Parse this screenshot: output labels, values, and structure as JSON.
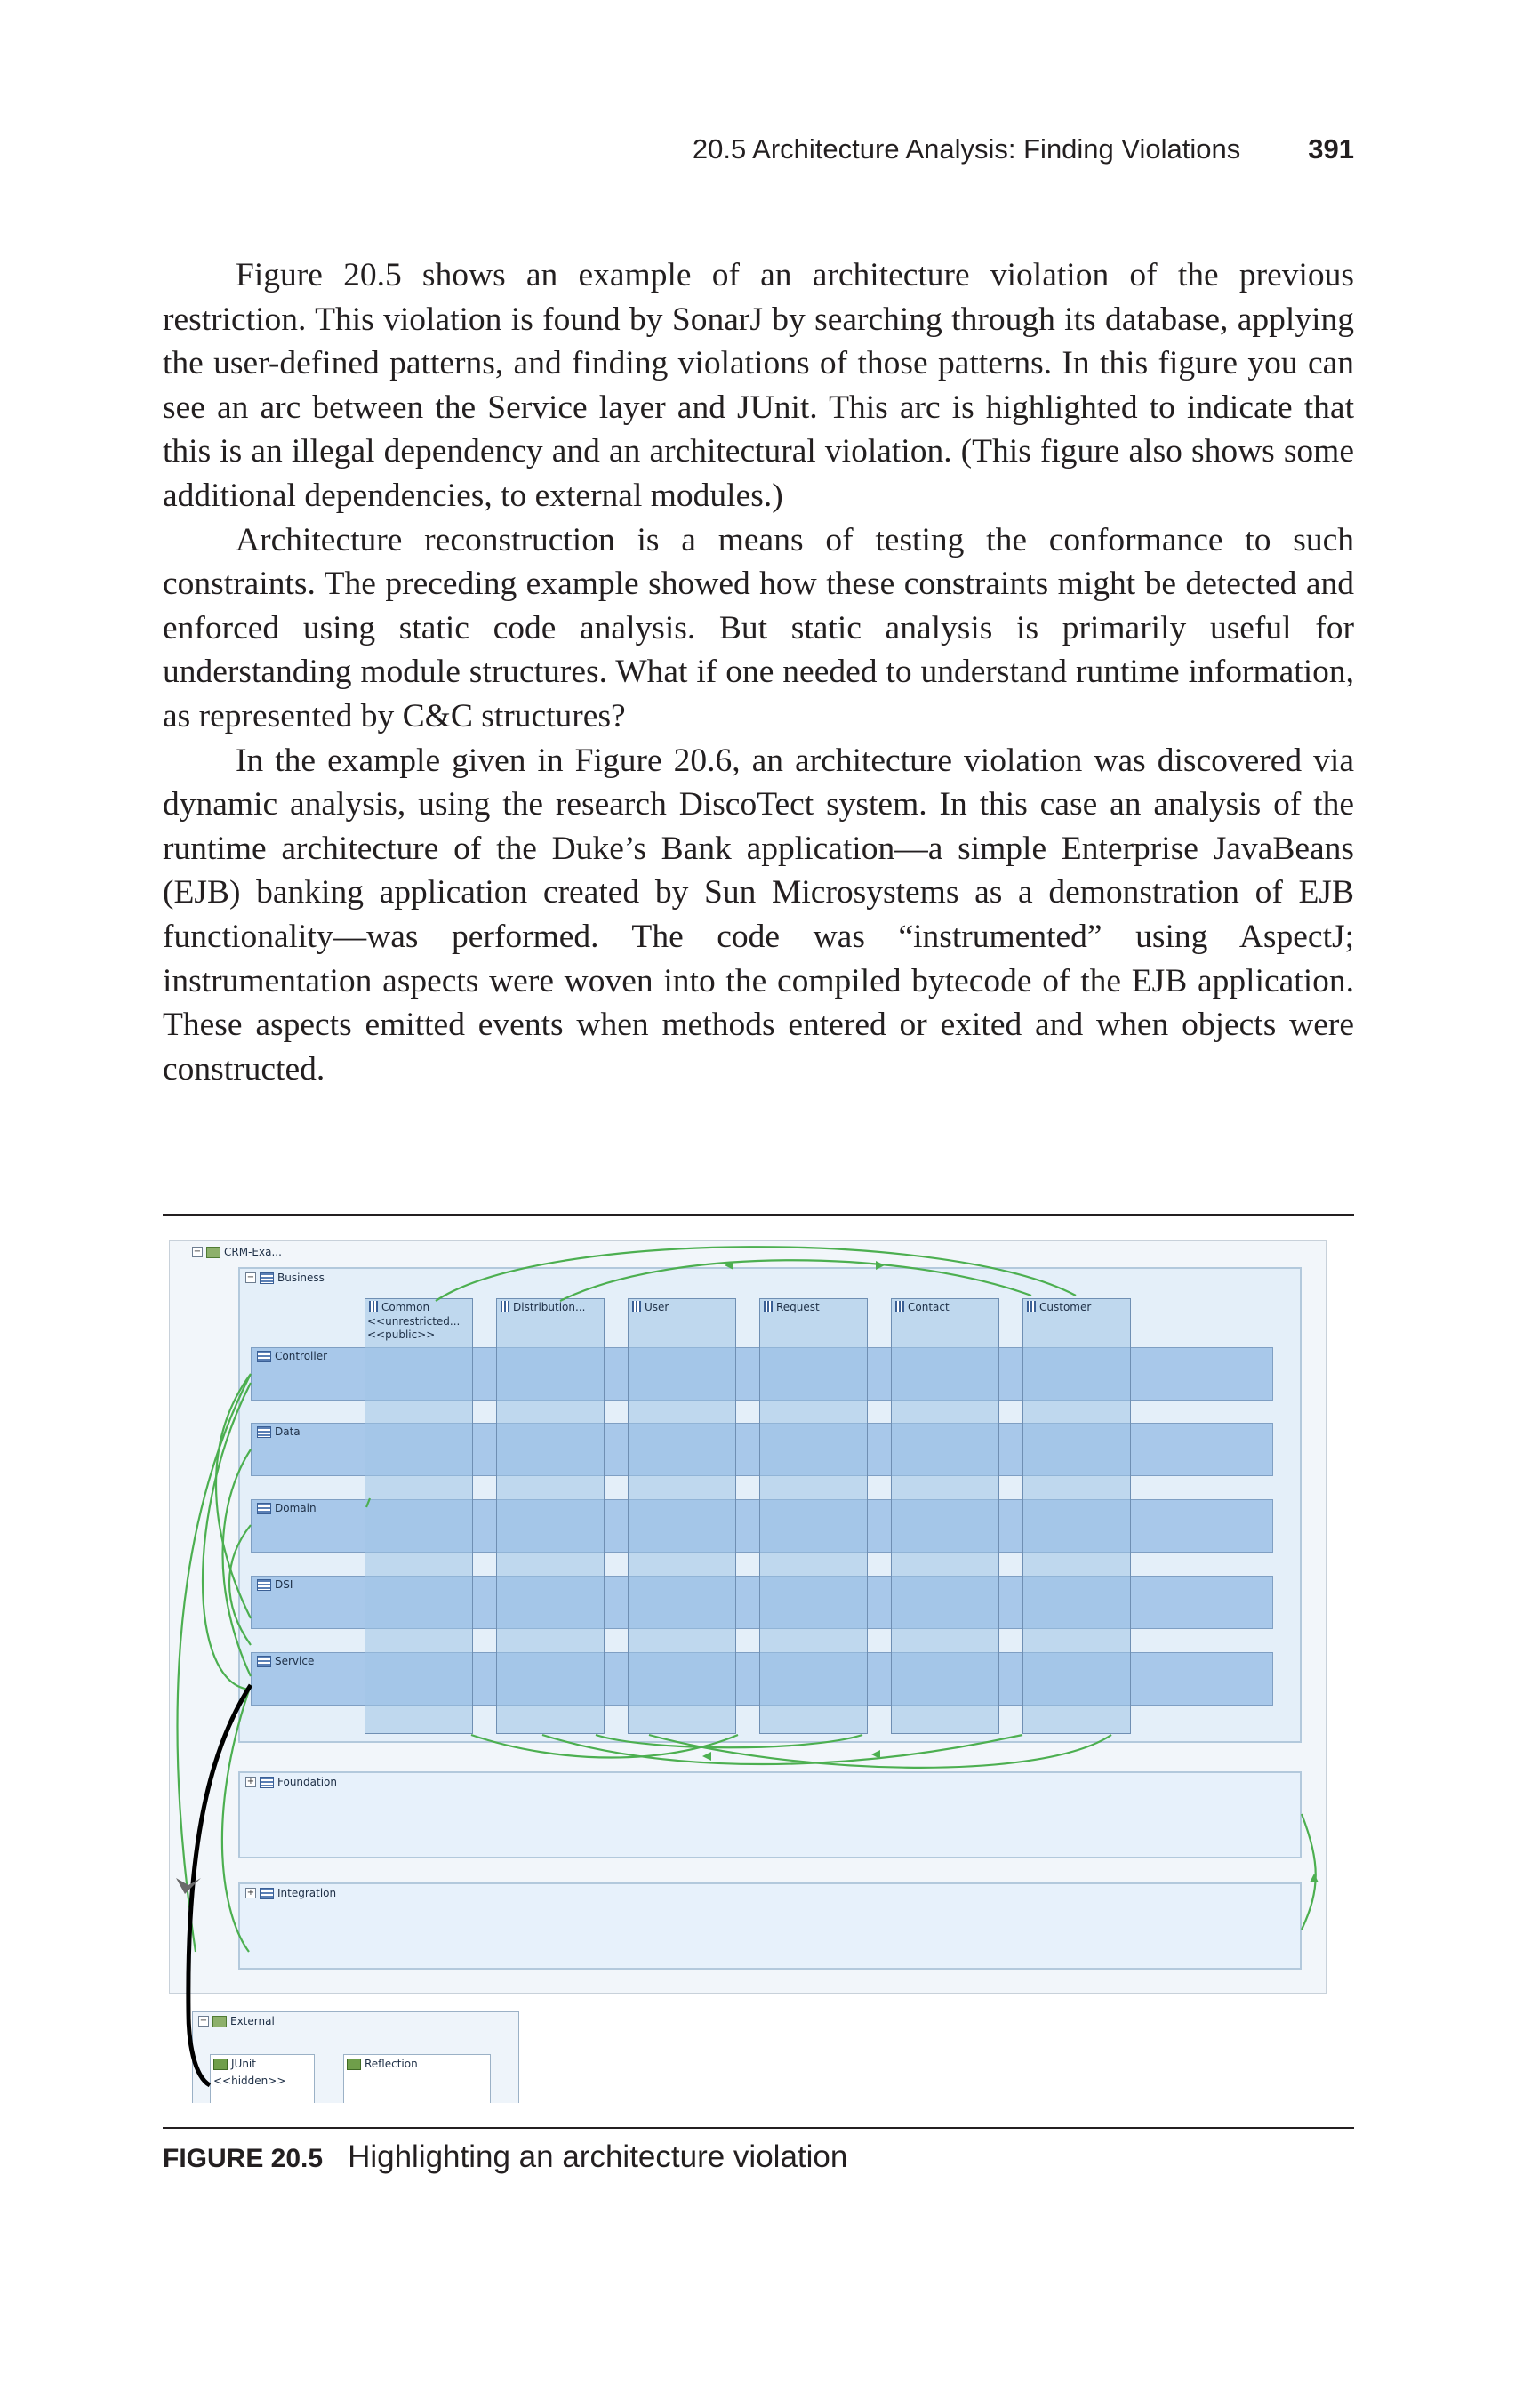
{
  "page": {
    "section_title": "20.5 Architecture Analysis: Finding Violations",
    "page_number": "391"
  },
  "paragraphs": [
    "Figure 20.5 shows an example of an architecture violation of the previous restriction. This violation is found by SonarJ by searching through its database, applying the user-defined patterns, and finding violations of those patterns. In this figure you can see an arc between the Service layer and JUnit. This arc is highlighted to indicate that this is an illegal dependency and an architectural violation. (This figure also shows some additional dependencies, to external modules.)",
    "Architecture reconstruction is a means of testing the conformance to such constraints. The preceding example showed how these constraints might be detected and enforced using static code analysis. But static analysis is primarily useful for understanding module structures. What if one needed to understand runtime information, as represented by C&C structures?",
    "In the example given in Figure 20.6, an architecture violation was discovered via dynamic analysis, using the research DiscoTect system. In this case an analysis of the runtime architecture of the Duke’s Bank application—a simple Enterprise JavaBeans (EJB) banking application created by Sun Microsystems as a demonstration of EJB functionality—was performed. The code was “instrumented” using AspectJ; instrumentation aspects were woven into the compiled bytecode of the EJB application. These aspects emitted events when methods entered or exited and when objects were constructed."
  ],
  "figure": {
    "caption_label": "FIGURE 20.5",
    "caption_text": "Highlighting an architecture violation",
    "root_label": "CRM-Exa...",
    "business_label": "Business",
    "slices": [
      {
        "label": "Common",
        "sub1": "<<unrestricted...",
        "sub2": "<<public>>"
      },
      {
        "label": "Distribution...",
        "sub1": "",
        "sub2": ""
      },
      {
        "label": "User",
        "sub1": "",
        "sub2": ""
      },
      {
        "label": "Request",
        "sub1": "",
        "sub2": ""
      },
      {
        "label": "Contact",
        "sub1": "",
        "sub2": ""
      },
      {
        "label": "Customer",
        "sub1": "",
        "sub2": ""
      }
    ],
    "layers": [
      "Controller",
      "Data",
      "Domain",
      "DSI",
      "Service"
    ],
    "foundation_label": "Foundation",
    "integration_label": "Integration",
    "external_label": "External",
    "junit_label": "JUnit",
    "junit_sub": "<<hidden>>",
    "reflection_label": "Reflection",
    "colors": {
      "dependency_arc": "#4caf50",
      "violation_arc": "#000000",
      "layer_fill": "#a8c8ea",
      "container_fill": "#e4eff9"
    }
  }
}
